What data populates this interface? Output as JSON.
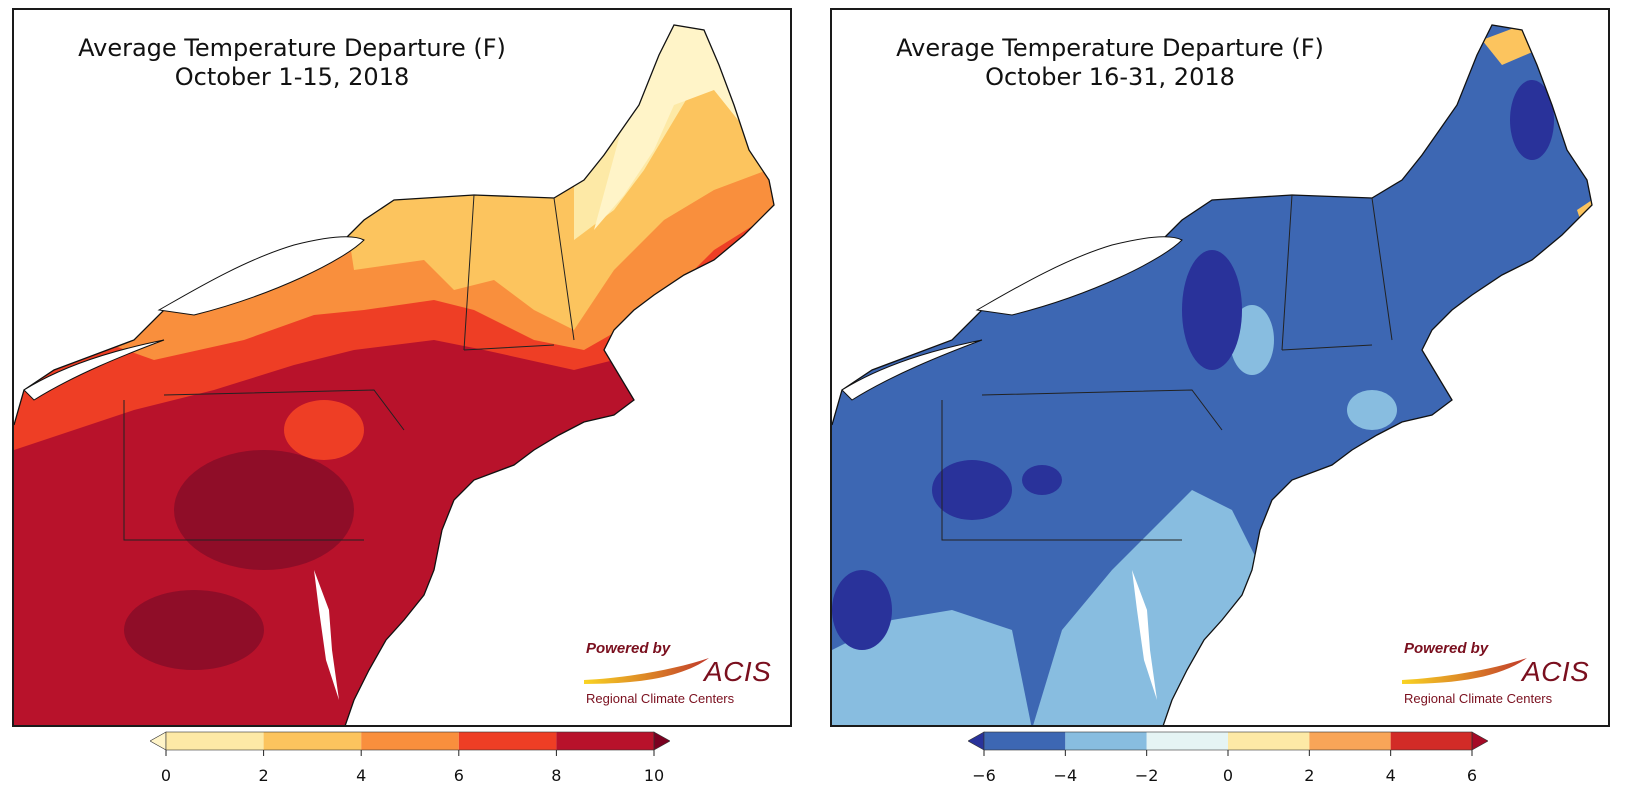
{
  "maps": [
    {
      "title_line1": "Average Temperature Departure (F)",
      "title_line2": "October 1-15, 2018",
      "logo": {
        "powered": "Powered by",
        "brand": "ACIS",
        "subtitle": "Regional Climate Centers"
      },
      "colorbar": {
        "ticks": [
          "0",
          "2",
          "4",
          "6",
          "8",
          "10"
        ],
        "bin_colors": [
          "#fde9a6",
          "#fcc45e",
          "#f98f3d",
          "#ee3e25",
          "#b8122b"
        ],
        "under_color": "#fff4c8",
        "over_color": "#7a0020"
      }
    },
    {
      "title_line1": "Average Temperature Departure (F)",
      "title_line2": "October 16-31, 2018",
      "logo": {
        "powered": "Powered by",
        "brand": "ACIS",
        "subtitle": "Regional Climate Centers"
      },
      "colorbar": {
        "ticks": [
          "−6",
          "−4",
          "−2",
          "0",
          "2",
          "4",
          "6"
        ],
        "bin_colors": [
          "#3d67b3",
          "#88bde0",
          "#e5f4f4",
          "#fde9a6",
          "#f8a558",
          "#d22b27"
        ],
        "under_color": "#29329a",
        "over_color": "#a50a26"
      }
    }
  ]
}
